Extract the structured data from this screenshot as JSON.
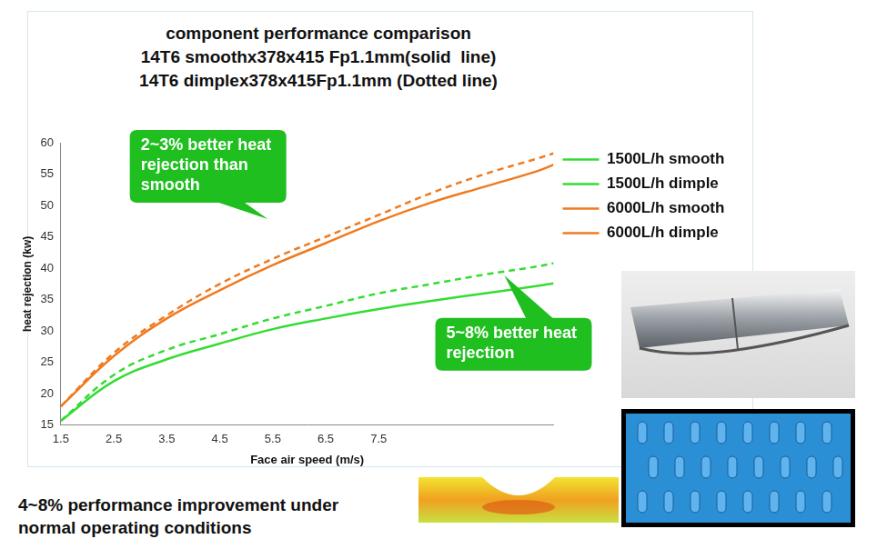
{
  "chart_data": {
    "type": "line",
    "title": "component performance comparison",
    "subtitles": [
      "14T6 smoothx378x415 Fp1.1mm(solid  line)",
      "14T6 dimplex378x415Fp1.1mm (Dotted line)"
    ],
    "x_label": "Face air speed (m/s)",
    "y_label": "heat rejection (kw)",
    "x": [
      1.5,
      2.5,
      3.5,
      4.5,
      5.5,
      6.5,
      7.5,
      8.5,
      9.5,
      10.5,
      10.8
    ],
    "series": [
      {
        "name": "1500L/h smooth",
        "color": "#33dd33",
        "line_style": "solid",
        "values": [
          15.7,
          22,
          25.5,
          28,
          30.3,
          32,
          33.5,
          34.8,
          36,
          37.2,
          37.6
        ]
      },
      {
        "name": "1500L/h dimple",
        "color": "#33dd33",
        "line_style": "dashed",
        "values": [
          15.7,
          23,
          27,
          29.5,
          32,
          34,
          36,
          37.5,
          39,
          40.3,
          40.8
        ]
      },
      {
        "name": "6000L/h smooth",
        "color": "#f07a20",
        "line_style": "solid",
        "values": [
          18,
          26,
          32,
          36.5,
          40.5,
          44,
          47.5,
          50.5,
          53,
          55.5,
          56.5
        ]
      },
      {
        "name": "6000L/h dimple",
        "color": "#f07a20",
        "line_style": "dashed",
        "values": [
          18,
          26.5,
          32.5,
          37.5,
          41.5,
          45,
          48.5,
          52,
          55,
          57.5,
          58.3
        ]
      }
    ],
    "xlim": [
      1.5,
      10.8
    ],
    "xticks": [
      1.5,
      2.5,
      3.5,
      4.5,
      5.5,
      6.5,
      7.5
    ],
    "ylim": [
      15,
      60
    ],
    "yticks": [
      15,
      20,
      25,
      30,
      35,
      40,
      45,
      50,
      55,
      60
    ],
    "grid": false,
    "legend": "right",
    "annotations": [
      "2~3% better heat rejection than smooth",
      "5~8% better heat rejection"
    ],
    "footnote": "4~8% performance improvement under normal operating conditions"
  }
}
